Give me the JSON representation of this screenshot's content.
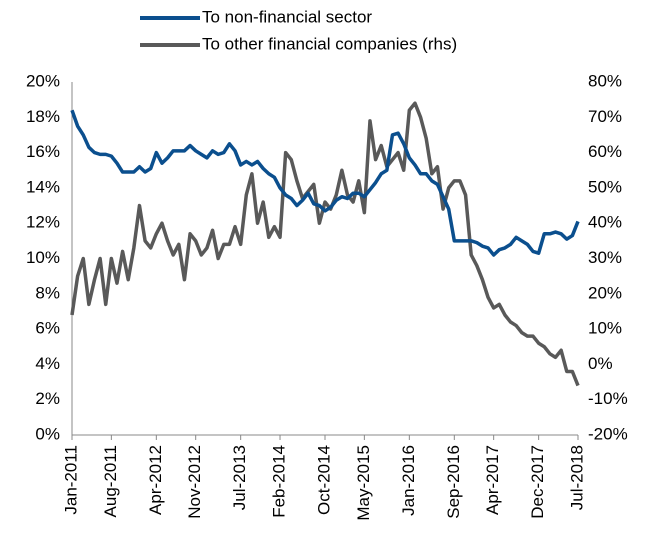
{
  "chart_data": {
    "type": "line",
    "legend": "top",
    "categories": [
      "Jan-2011",
      null,
      null,
      null,
      null,
      null,
      null,
      "Aug-2011",
      null,
      null,
      null,
      null,
      null,
      null,
      null,
      "Apr-2012",
      null,
      null,
      null,
      null,
      null,
      null,
      "Nov-2012",
      null,
      null,
      null,
      null,
      null,
      null,
      null,
      "Jul-2013",
      null,
      null,
      null,
      null,
      null,
      null,
      "Feb-2014",
      null,
      null,
      null,
      null,
      null,
      null,
      null,
      "Oct-2014",
      null,
      null,
      null,
      null,
      null,
      null,
      "May-2015",
      null,
      null,
      null,
      null,
      null,
      null,
      null,
      "Jan-2016",
      null,
      null,
      null,
      null,
      null,
      null,
      null,
      "Sep-2016",
      null,
      null,
      null,
      null,
      null,
      null,
      "Apr-2017",
      null,
      null,
      null,
      null,
      null,
      null,
      null,
      "Dec-2017",
      null,
      null,
      null,
      null,
      null,
      null,
      "Jul-2018"
    ],
    "series": [
      {
        "name": "To non-financial sector",
        "color": "#0b4f8e",
        "axis": "y",
        "values": [
          18.4,
          17.5,
          17.0,
          16.3,
          16.0,
          15.9,
          15.9,
          15.8,
          15.4,
          14.9,
          14.9,
          14.9,
          15.2,
          14.9,
          15.1,
          16.0,
          15.4,
          15.7,
          16.1,
          16.1,
          16.1,
          16.4,
          16.1,
          15.9,
          15.7,
          16.1,
          15.9,
          16.0,
          16.5,
          16.1,
          15.3,
          15.5,
          15.3,
          15.5,
          15.1,
          14.8,
          14.6,
          14.0,
          13.6,
          13.4,
          13.0,
          13.3,
          13.7,
          13.1,
          13.0,
          12.7,
          12.9,
          13.3,
          13.5,
          13.4,
          13.7,
          13.7,
          13.5,
          13.9,
          14.3,
          14.8,
          15.0,
          17.0,
          17.1,
          16.5,
          15.7,
          15.3,
          14.8,
          14.8,
          14.4,
          14.2,
          13.5,
          12.8,
          11.0,
          11.0,
          11.0,
          11.0,
          10.9,
          10.7,
          10.6,
          10.2,
          10.5,
          10.6,
          10.8,
          11.2,
          11.0,
          10.8,
          10.4,
          10.3,
          11.4,
          11.4,
          11.5,
          11.4,
          11.1,
          11.3,
          12.1
        ]
      },
      {
        "name": "To other financial companies (rhs)",
        "color": "#595959",
        "axis": "y2",
        "values": [
          14,
          25,
          30,
          17,
          24,
          30,
          17,
          30,
          23,
          32,
          24,
          33,
          45,
          35,
          33,
          37,
          40,
          35,
          31,
          34,
          24,
          37,
          35,
          31,
          33,
          38,
          30,
          34,
          34,
          39,
          34,
          48,
          54,
          40,
          46,
          36,
          39,
          36,
          60,
          58,
          52,
          47,
          49,
          51,
          40,
          46,
          44,
          48,
          55,
          48,
          46,
          52,
          43,
          69,
          58,
          62,
          56,
          58,
          60,
          55,
          72,
          74,
          70,
          64,
          54,
          56,
          44,
          50,
          52,
          52,
          48,
          31,
          28,
          24,
          19,
          16,
          17,
          14,
          12,
          11,
          9,
          8,
          8,
          6,
          5,
          3,
          2,
          4,
          -2,
          -2,
          -6
        ]
      }
    ],
    "ylim": [
      0,
      20
    ],
    "yticks": [
      {
        "value": 0,
        "label": "0%"
      },
      {
        "value": 2,
        "label": "2%"
      },
      {
        "value": 4,
        "label": "4%"
      },
      {
        "value": 6,
        "label": "6%"
      },
      {
        "value": 8,
        "label": "8%"
      },
      {
        "value": 10,
        "label": "10%"
      },
      {
        "value": 12,
        "label": "12%"
      },
      {
        "value": 14,
        "label": "14%"
      },
      {
        "value": 16,
        "label": "16%"
      },
      {
        "value": 18,
        "label": "18%"
      },
      {
        "value": 20,
        "label": "20%"
      }
    ],
    "y2lim": [
      -20,
      80
    ],
    "y2ticks": [
      {
        "value": -20,
        "label": "-20%"
      },
      {
        "value": -10,
        "label": "-10%"
      },
      {
        "value": 0,
        "label": "0%"
      },
      {
        "value": 10,
        "label": "10%"
      },
      {
        "value": 20,
        "label": "20%"
      },
      {
        "value": 30,
        "label": "30%"
      },
      {
        "value": 40,
        "label": "40%"
      },
      {
        "value": 50,
        "label": "50%"
      },
      {
        "value": 60,
        "label": "60%"
      },
      {
        "value": 70,
        "label": "70%"
      },
      {
        "value": 80,
        "label": "80%"
      }
    ]
  }
}
